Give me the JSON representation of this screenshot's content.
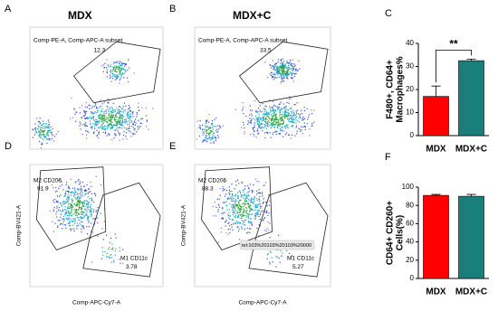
{
  "panels": [
    {
      "letter": "A",
      "title": "MDX",
      "gates": [
        {
          "label": "Comp-PE-A, Comp-APC-A subset",
          "percent": 12.3
        }
      ]
    },
    {
      "letter": "B",
      "title": "MDX+C",
      "gates": [
        {
          "label": "Comp-PE-A, Comp-APC-A subset",
          "percent": 33.5
        }
      ]
    },
    {
      "letter": "D",
      "xlabel": "Comp-APC-Cy7-A",
      "ylabel": "Comp-BV421-A",
      "gates": [
        {
          "label": "M2 CD206",
          "percent": 91.9
        },
        {
          "label": "M1 CD11c",
          "percent": 3.78
        }
      ]
    },
    {
      "letter": "E",
      "xlabel": "Comp-APC-Cy7-A",
      "ylabel": "Comp-BV421-A",
      "gates": [
        {
          "label": "M2 CD206",
          "percent": 88.3
        },
        {
          "label": "M1 CD11c",
          "percent": 5.27
        }
      ],
      "tooltip": "tel:103%20103%20103%20000"
    }
  ],
  "chart_data": [
    {
      "type": "bar",
      "panel": "C",
      "ylabel": [
        "F480+, CD64+",
        "Macrophages%"
      ],
      "categories": [
        "MDX",
        "MDX+C"
      ],
      "values": [
        17,
        32.5
      ],
      "errors": [
        4.5,
        0.7
      ],
      "colors": [
        "#ff0000",
        "#1a7f7a"
      ],
      "ylim": [
        0,
        40
      ],
      "yticks": [
        0,
        10,
        20,
        30,
        40
      ],
      "annotation": "**"
    },
    {
      "type": "bar",
      "panel": "F",
      "ylabel": [
        "CD64+ CD260+",
        "Cells(%)"
      ],
      "categories": [
        "MDX",
        "MDX+C"
      ],
      "values": [
        91,
        90
      ],
      "errors": [
        1,
        2
      ],
      "colors": [
        "#ff0000",
        "#1a7f7a"
      ],
      "ylim": [
        0,
        100
      ],
      "yticks": [
        0,
        20,
        40,
        60,
        80,
        100
      ]
    }
  ]
}
